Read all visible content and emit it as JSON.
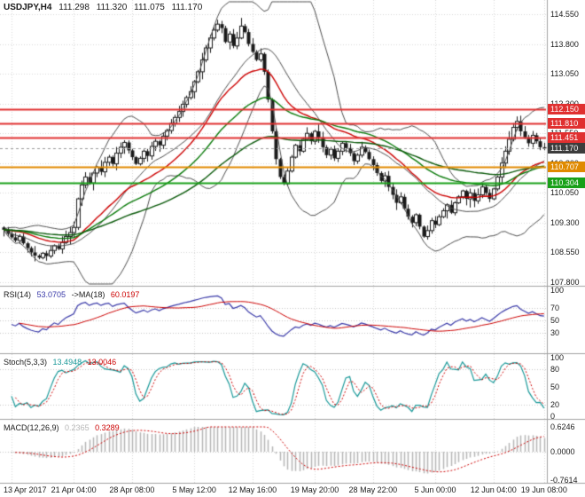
{
  "header": {
    "symbol_period": "USDJPY,H4",
    "open": "111.298",
    "high": "111.320",
    "low": "111.075",
    "close": "111.170"
  },
  "chart_data": {
    "type": "candlestick",
    "symbol": "USDJPY",
    "timeframe": "H4",
    "current_bar": {
      "open": 111.298,
      "high": 111.32,
      "low": 111.075,
      "close": 111.17
    },
    "closes": [
      109.12,
      109.02,
      108.93,
      108.85,
      108.95,
      108.78,
      108.66,
      108.55,
      108.47,
      108.42,
      108.53,
      108.46,
      108.6,
      108.72,
      108.64,
      108.8,
      108.95,
      109.05,
      109.18,
      109.9,
      110.25,
      110.45,
      110.3,
      110.55,
      110.7,
      110.58,
      110.82,
      110.95,
      110.78,
      111.05,
      111.2,
      111.32,
      111.12,
      110.95,
      110.78,
      110.92,
      111.1,
      110.98,
      111.22,
      111.35,
      111.25,
      111.48,
      111.62,
      111.8,
      111.95,
      112.1,
      112.28,
      112.45,
      112.6,
      112.85,
      113.1,
      113.4,
      113.7,
      113.95,
      114.15,
      114.3,
      114.2,
      113.85,
      114.05,
      113.75,
      113.95,
      114.25,
      114.1,
      113.8,
      113.6,
      113.4,
      113.55,
      113.1,
      112.4,
      111.6,
      110.9,
      110.45,
      110.28,
      110.6,
      110.95,
      111.25,
      111.1,
      111.4,
      111.55,
      111.35,
      111.6,
      111.45,
      111.2,
      111.0,
      111.15,
      110.92,
      111.1,
      111.3,
      111.18,
      111.05,
      110.85,
      111.0,
      111.2,
      111.08,
      110.9,
      110.75,
      110.55,
      110.35,
      110.48,
      110.2,
      110.0,
      109.8,
      109.95,
      109.65,
      109.45,
      109.3,
      109.5,
      109.2,
      108.95,
      109.1,
      109.35,
      109.25,
      109.45,
      109.6,
      109.75,
      109.55,
      109.8,
      109.95,
      110.1,
      109.9,
      110.05,
      109.85,
      110.0,
      110.2,
      110.05,
      109.9,
      110.15,
      110.45,
      110.8,
      111.1,
      111.4,
      111.7,
      111.85,
      111.6,
      111.45,
      111.3,
      111.5,
      111.35,
      111.2,
      111.17
    ],
    "y_ticks": [
      {
        "label": "114.550",
        "price": 114.55
      },
      {
        "label": "113.800",
        "price": 113.8
      },
      {
        "label": "113.050",
        "price": 113.05
      },
      {
        "label": "112.300",
        "price": 112.3
      },
      {
        "label": "111.550",
        "price": 111.55
      },
      {
        "label": "110.800",
        "price": 110.8
      },
      {
        "label": "110.050",
        "price": 110.05
      },
      {
        "label": "109.300",
        "price": 109.3
      },
      {
        "label": "108.550",
        "price": 108.55
      },
      {
        "label": "107.800",
        "price": 107.8
      }
    ],
    "x_ticks": [
      {
        "label": "13 Apr 2017",
        "bar": 2
      },
      {
        "label": "21 Apr 04:00",
        "bar": 18
      },
      {
        "label": "28 Apr 08:00",
        "bar": 33
      },
      {
        "label": "5 May 12:00",
        "bar": 49
      },
      {
        "label": "12 May 16:00",
        "bar": 64
      },
      {
        "label": "19 May 20:00",
        "bar": 80
      },
      {
        "label": "28 May 22:00",
        "bar": 95
      },
      {
        "label": "5 Jun 00:00",
        "bar": 111
      },
      {
        "label": "12 Jun 04:00",
        "bar": 126
      },
      {
        "label": "19 Jun 08:00",
        "bar": 139
      }
    ],
    "levels": [
      {
        "label": "112.150",
        "price": 112.15,
        "color": "#e03030",
        "kind": "resistance"
      },
      {
        "label": "111.810",
        "price": 111.81,
        "color": "#e03030",
        "kind": "resistance"
      },
      {
        "label": "111.451",
        "price": 111.451,
        "color": "#e03030",
        "kind": "resistance"
      },
      {
        "label": "111.170",
        "price": 111.17,
        "color": "#3c3c3c",
        "kind": "current-price"
      },
      {
        "label": "110.707",
        "price": 110.707,
        "color": "#e08a00",
        "kind": "support"
      },
      {
        "label": "110.304",
        "price": 110.304,
        "color": "#18a018",
        "kind": "support"
      }
    ],
    "overlays": {
      "bollinger": {
        "period": 20,
        "deviation": 2,
        "color": "#4d4d4d"
      },
      "ma_red": {
        "period": 26,
        "color": "#cc0000"
      },
      "ma_green_fast": {
        "period": 45,
        "color": "#0a7a0a"
      },
      "ma_green_slow": {
        "period": 85,
        "color": "#085808"
      }
    },
    "indicators": {
      "rsi": {
        "label": "RSI(14)",
        "value": "53.0705",
        "ma_label": "->MA(18)",
        "ma_value": "60.0197",
        "period": 14,
        "ma_period": 18,
        "levels": [
          70,
          50,
          30
        ],
        "axis": [
          {
            "label": "100",
            "value": 100
          },
          {
            "label": "70",
            "value": 70
          },
          {
            "label": "50",
            "value": 50
          },
          {
            "label": "30",
            "value": 30
          }
        ],
        "line_color": "#3939a8",
        "ma_color": "#cc0000"
      },
      "stoch": {
        "label": "Stoch(5,3,3)",
        "value": "13.4948",
        "signal_value": "13.0046",
        "k": 5,
        "slowing": 3,
        "d": 3,
        "levels": [
          80,
          20
        ],
        "axis": [
          {
            "label": "100",
            "value": 100
          },
          {
            "label": "80",
            "value": 80
          },
          {
            "label": "50",
            "value": 50
          },
          {
            "label": "20",
            "value": 20
          },
          {
            "label": "0",
            "value": 0
          }
        ],
        "line_color": "#189898",
        "signal_color": "#cc0000"
      },
      "macd": {
        "label": "MACD(12,26,9)",
        "value": "0.2365",
        "signal_value": "0.3289",
        "fast": 12,
        "slow": 26,
        "signal": 9,
        "axis": [
          {
            "label": "0.6246",
            "value": 0.6246
          },
          {
            "label": "0.0000",
            "value": 0
          },
          {
            "label": "-0.7614",
            "value": -0.7614
          }
        ],
        "hist_color": "#b6b6b6",
        "signal_color": "#cc0000"
      }
    }
  }
}
